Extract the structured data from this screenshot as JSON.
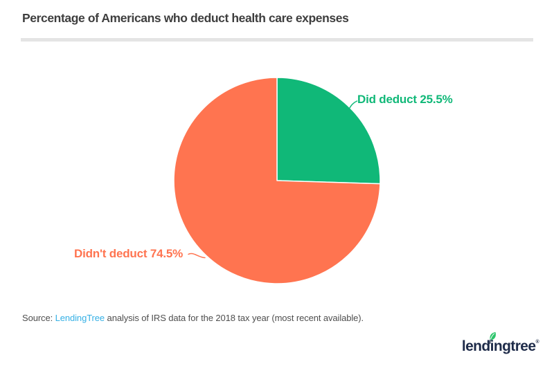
{
  "chart_data": {
    "type": "pie",
    "title": "Percentage of Americans who deduct health care expenses",
    "slices": [
      {
        "label": "Did deduct",
        "value": 25.5,
        "callout": "Did deduct 25.5%",
        "color": "#10b878"
      },
      {
        "label": "Didn't deduct",
        "value": 74.5,
        "callout": "Didn't deduct 74.5%",
        "color": "#ff7450"
      }
    ],
    "start_angle": "12 o'clock",
    "direction": "clockwise",
    "labels": "external callouts with leader lines",
    "legend_position": "none"
  },
  "source": {
    "prefix": "Source: ",
    "link": "LendingTree",
    "suffix": " analysis of IRS data for the 2018 tax year (most recent available)."
  },
  "logo": {
    "wordmark": "lendingtree",
    "registered": "®",
    "icon": "leaf-icon"
  },
  "colors": {
    "slice_green": "#10b878",
    "slice_orange": "#ff7450",
    "link_blue": "#35b0e5",
    "logo_navy": "#1e2b49",
    "leaf_green": "#2bc46a",
    "title_gray": "#3e3e3e",
    "divider_gray": "#e4e4e4"
  }
}
